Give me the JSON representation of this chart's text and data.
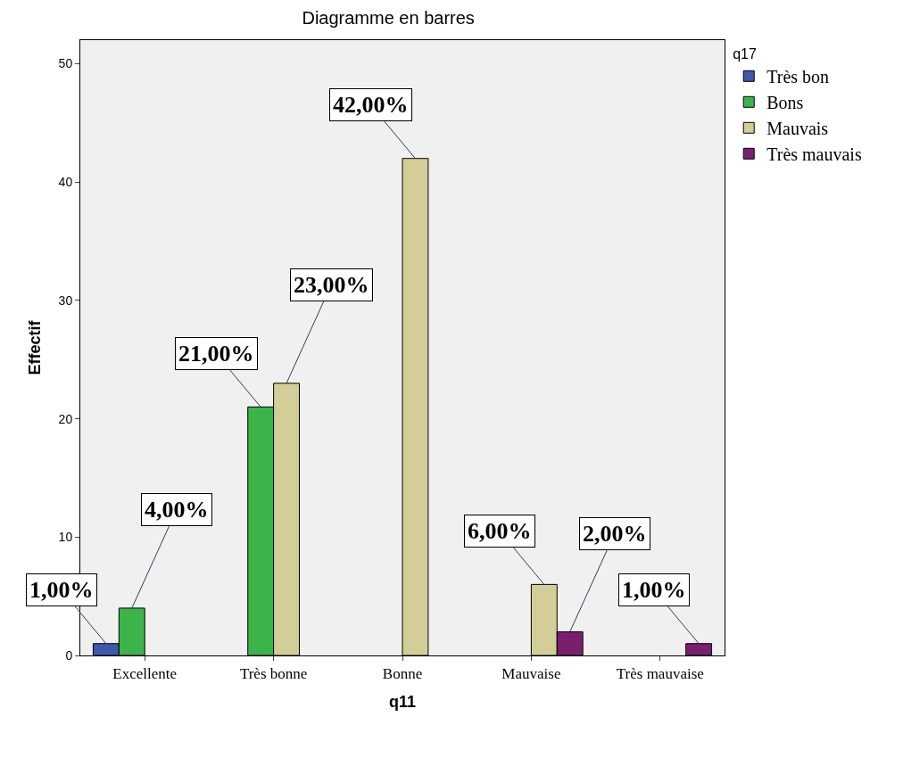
{
  "chart_data": {
    "type": "bar",
    "title": "Diagramme en barres",
    "xlabel": "q11",
    "ylabel": "Effectif",
    "legend_title": "q17",
    "categories": [
      "Excellente",
      "Très bonne",
      "Bonne",
      "Mauvaise",
      "Très mauvaise"
    ],
    "series": [
      {
        "name": "Très bon",
        "color": "#3e58ac",
        "values": [
          1,
          null,
          null,
          null,
          null
        ],
        "value_labels": [
          "1,00%",
          null,
          null,
          null,
          null
        ]
      },
      {
        "name": "Bons",
        "color": "#3cb44a",
        "values": [
          4,
          21,
          null,
          null,
          null
        ],
        "value_labels": [
          "4,00%",
          "21,00%",
          null,
          null,
          null
        ]
      },
      {
        "name": "Mauvais",
        "color": "#d3ce97",
        "values": [
          null,
          23,
          42,
          6,
          null
        ],
        "value_labels": [
          null,
          "23,00%",
          "42,00%",
          "6,00%",
          null
        ]
      },
      {
        "name": "Très mauvais",
        "color": "#7a1f6e",
        "values": [
          null,
          null,
          null,
          2,
          1
        ],
        "value_labels": [
          null,
          null,
          null,
          "2,00%",
          "1,00%"
        ]
      }
    ],
    "ylim": [
      0,
      52
    ],
    "yticks": [
      0,
      10,
      20,
      30,
      40,
      50
    ],
    "grid": false,
    "legend": "top right"
  }
}
